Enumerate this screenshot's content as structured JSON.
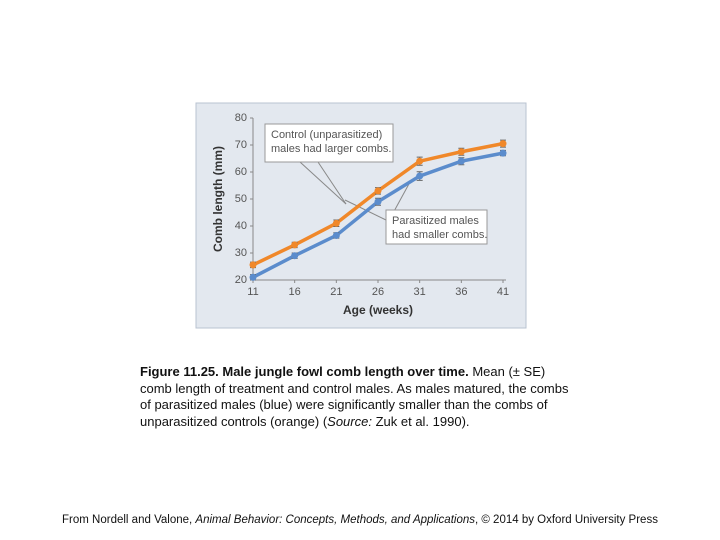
{
  "chart_data": {
    "type": "line",
    "xlabel": "Age (weeks)",
    "ylabel": "Comb length (mm)",
    "x": [
      11,
      16,
      21,
      26,
      31,
      36,
      41
    ],
    "xlim": [
      11,
      41
    ],
    "xticks": [
      11,
      16,
      21,
      26,
      31,
      36,
      41
    ],
    "ylim": [
      20,
      80
    ],
    "yticks": [
      20,
      30,
      40,
      50,
      60,
      70,
      80
    ],
    "grid": false,
    "series": [
      {
        "name": "Control (unparasitized)",
        "color": "#f0882a",
        "values": [
          25.6,
          33,
          41,
          53,
          64,
          67.5,
          70.5
        ],
        "errors": [
          1,
          1,
          1.2,
          1.2,
          1.5,
          1.3,
          1.3
        ]
      },
      {
        "name": "Parasitized",
        "color": "#5b8ccc",
        "values": [
          21,
          29,
          36.5,
          49,
          58.5,
          64,
          67
        ],
        "errors": [
          1,
          1,
          1,
          1.3,
          1.6,
          1.3,
          1
        ]
      }
    ],
    "annotations": [
      {
        "lines": [
          "Control (unparasitized)",
          "males had larger combs."
        ]
      },
      {
        "lines": [
          "Parasitized males",
          "had smaller combs."
        ]
      }
    ]
  },
  "caption": {
    "title": "Figure 11.25. Male jungle fowl comb length over time.",
    "body": "Mean (± SE) comb length of treatment and control males. As males matured, the combs of parasitized males (blue) were significantly smaller than the combs of unparasitized controls (orange) (",
    "source_label": "Source:",
    "source": " Zuk et al. 1990)."
  },
  "footer": {
    "prefix": "From Nordell and Valone, ",
    "book": "Animal Behavior: Concepts, Methods, and Applications",
    "suffix": ", © 2014 by Oxford University Press"
  }
}
